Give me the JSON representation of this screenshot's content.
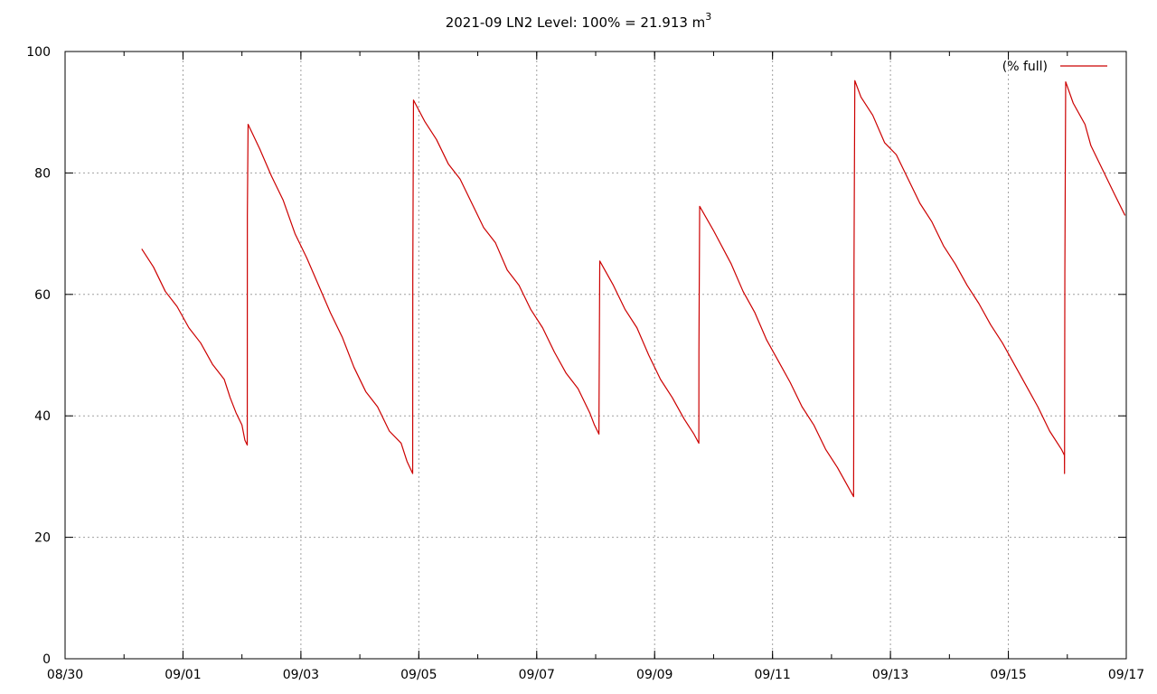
{
  "chart_data": {
    "type": "line",
    "title": "2021-09 LN2 Level: 100% = 21.913 m",
    "title_superscript": "3",
    "xlabel": "",
    "ylabel": "",
    "xlim": [
      "2021-08-30",
      "2021-09-17"
    ],
    "ylim": [
      0,
      100
    ],
    "x_ticks": [
      "08/30",
      "09/01",
      "09/03",
      "09/05",
      "09/07",
      "09/09",
      "09/11",
      "09/13",
      "09/15",
      "09/17"
    ],
    "y_ticks": [
      "0",
      "20",
      "40",
      "60",
      "80",
      "100"
    ],
    "grid": true,
    "legend_position": "top-right",
    "series": [
      {
        "name": "(% full)",
        "color": "#cc0000",
        "points": [
          [
            "2021-08-31T07:12",
            67.5
          ],
          [
            "2021-08-31T12:00",
            64.5
          ],
          [
            "2021-08-31T16:48",
            60.5
          ],
          [
            "2021-08-31T21:36",
            58.0
          ],
          [
            "2021-09-01T02:24",
            54.5
          ],
          [
            "2021-09-01T07:12",
            52.0
          ],
          [
            "2021-09-01T12:00",
            48.5
          ],
          [
            "2021-09-01T16:48",
            46.0
          ],
          [
            "2021-09-01T19:12",
            43.0
          ],
          [
            "2021-09-01T21:36",
            40.5
          ],
          [
            "2021-09-02T00:00",
            38.5
          ],
          [
            "2021-09-02T01:12",
            36.0
          ],
          [
            "2021-09-02T02:10",
            35.2
          ],
          [
            "2021-09-02T02:12",
            73.0
          ],
          [
            "2021-09-02T02:30",
            88.0
          ],
          [
            "2021-09-02T07:12",
            84.0
          ],
          [
            "2021-09-02T12:00",
            79.5
          ],
          [
            "2021-09-02T16:48",
            75.5
          ],
          [
            "2021-09-02T21:36",
            70.0
          ],
          [
            "2021-09-03T02:24",
            66.0
          ],
          [
            "2021-09-03T07:12",
            61.5
          ],
          [
            "2021-09-03T12:00",
            57.0
          ],
          [
            "2021-09-03T16:48",
            53.0
          ],
          [
            "2021-09-03T21:36",
            48.0
          ],
          [
            "2021-09-04T02:24",
            44.0
          ],
          [
            "2021-09-04T07:12",
            41.5
          ],
          [
            "2021-09-04T12:00",
            37.5
          ],
          [
            "2021-09-04T16:48",
            35.5
          ],
          [
            "2021-09-04T19:12",
            32.5
          ],
          [
            "2021-09-04T21:30",
            30.5
          ],
          [
            "2021-09-04T21:33",
            63.0
          ],
          [
            "2021-09-04T21:50",
            92.0
          ],
          [
            "2021-09-05T02:24",
            88.5
          ],
          [
            "2021-09-05T07:12",
            85.5
          ],
          [
            "2021-09-05T12:00",
            81.5
          ],
          [
            "2021-09-05T16:48",
            79.0
          ],
          [
            "2021-09-05T21:36",
            75.0
          ],
          [
            "2021-09-06T02:24",
            71.0
          ],
          [
            "2021-09-06T07:12",
            68.5
          ],
          [
            "2021-09-06T12:00",
            64.0
          ],
          [
            "2021-09-06T16:48",
            61.5
          ],
          [
            "2021-09-06T21:36",
            57.5
          ],
          [
            "2021-09-07T02:24",
            54.5
          ],
          [
            "2021-09-07T07:12",
            50.5
          ],
          [
            "2021-09-07T12:00",
            47.0
          ],
          [
            "2021-09-07T16:48",
            44.5
          ],
          [
            "2021-09-07T21:36",
            40.5
          ],
          [
            "2021-09-07T23:30",
            38.5
          ],
          [
            "2021-09-08T01:20",
            37.0
          ],
          [
            "2021-09-08T01:22",
            41.0
          ],
          [
            "2021-09-08T01:40",
            65.5
          ],
          [
            "2021-09-08T07:12",
            61.5
          ],
          [
            "2021-09-08T12:00",
            57.5
          ],
          [
            "2021-09-08T16:48",
            54.5
          ],
          [
            "2021-09-08T21:36",
            50.0
          ],
          [
            "2021-09-09T02:24",
            46.0
          ],
          [
            "2021-09-09T07:12",
            43.0
          ],
          [
            "2021-09-09T12:00",
            39.5
          ],
          [
            "2021-09-09T16:00",
            37.0
          ],
          [
            "2021-09-09T18:00",
            35.5
          ],
          [
            "2021-09-09T18:02",
            50.5
          ],
          [
            "2021-09-09T18:20",
            74.5
          ],
          [
            "2021-09-10T00:00",
            70.5
          ],
          [
            "2021-09-10T07:12",
            65.0
          ],
          [
            "2021-09-10T12:00",
            60.5
          ],
          [
            "2021-09-10T16:48",
            57.0
          ],
          [
            "2021-09-10T21:36",
            52.5
          ],
          [
            "2021-09-11T02:24",
            49.0
          ],
          [
            "2021-09-11T07:12",
            45.5
          ],
          [
            "2021-09-11T12:00",
            41.5
          ],
          [
            "2021-09-11T16:48",
            38.5
          ],
          [
            "2021-09-11T21:36",
            34.5
          ],
          [
            "2021-09-12T02:24",
            31.5
          ],
          [
            "2021-09-12T07:12",
            28.0
          ],
          [
            "2021-09-12T09:00",
            26.7
          ],
          [
            "2021-09-12T09:02",
            33.0
          ],
          [
            "2021-09-12T09:10",
            65.0
          ],
          [
            "2021-09-12T09:30",
            95.2
          ],
          [
            "2021-09-12T12:00",
            92.5
          ],
          [
            "2021-09-12T16:48",
            89.5
          ],
          [
            "2021-09-12T21:36",
            85.0
          ],
          [
            "2021-09-13T02:24",
            83.0
          ],
          [
            "2021-09-13T07:12",
            79.0
          ],
          [
            "2021-09-13T12:00",
            75.0
          ],
          [
            "2021-09-13T16:48",
            72.0
          ],
          [
            "2021-09-13T21:36",
            68.0
          ],
          [
            "2021-09-14T02:24",
            65.0
          ],
          [
            "2021-09-14T07:12",
            61.5
          ],
          [
            "2021-09-14T12:00",
            58.5
          ],
          [
            "2021-09-14T16:48",
            55.0
          ],
          [
            "2021-09-14T21:36",
            52.0
          ],
          [
            "2021-09-15T02:24",
            48.5
          ],
          [
            "2021-09-15T07:12",
            45.0
          ],
          [
            "2021-09-15T12:00",
            41.5
          ],
          [
            "2021-09-15T16:48",
            37.5
          ],
          [
            "2021-09-15T21:36",
            34.5
          ],
          [
            "2021-09-15T22:50",
            33.5
          ],
          [
            "2021-09-15T22:52",
            30.5
          ],
          [
            "2021-09-15T23:00",
            63.5
          ],
          [
            "2021-09-15T23:20",
            95.0
          ],
          [
            "2021-09-16T02:24",
            91.5
          ],
          [
            "2021-09-16T07:12",
            88.0
          ],
          [
            "2021-09-16T09:36",
            84.5
          ],
          [
            "2021-09-16T14:24",
            80.5
          ],
          [
            "2021-09-16T19:12",
            76.5
          ],
          [
            "2021-09-16T23:30",
            73.0
          ]
        ]
      }
    ]
  }
}
